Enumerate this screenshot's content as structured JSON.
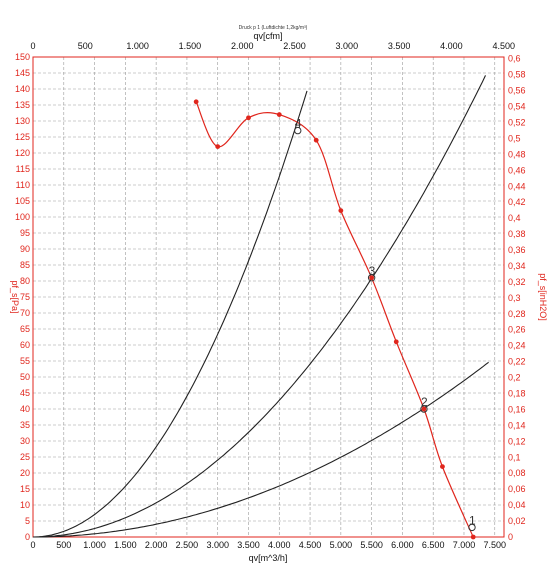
{
  "chart_data": {
    "type": "line",
    "title": "Druck p 1 (Luftdichte 1,2kg/m³)",
    "x_bottom": {
      "label": "qv[m^3/h]",
      "ticks": [
        0,
        500,
        1000,
        1500,
        2000,
        2500,
        3000,
        3500,
        4000,
        4500,
        5000,
        5500,
        6000,
        6500,
        7000,
        7500
      ],
      "tick_labels": [
        "0",
        "500",
        "1.000",
        "1.500",
        "2.000",
        "2.500",
        "3.000",
        "3.500",
        "4.000",
        "4.500",
        "5.000",
        "5.500",
        "6.000",
        "6.500",
        "7.000",
        "7.500"
      ],
      "range": [
        0,
        7650
      ]
    },
    "x_top": {
      "label": "qv[cfm]",
      "ticks": [
        0,
        500,
        1000,
        1500,
        2000,
        2500,
        3000,
        3500,
        4000,
        4500
      ],
      "tick_labels": [
        "0",
        "500",
        "1.000",
        "1.500",
        "2.000",
        "2.500",
        "3.000",
        "3.500",
        "4.000",
        "4.500"
      ]
    },
    "y_left": {
      "label": "pf_s[Pa]",
      "ticks": [
        0,
        5,
        10,
        15,
        20,
        25,
        30,
        35,
        40,
        45,
        50,
        55,
        60,
        65,
        70,
        75,
        80,
        85,
        90,
        95,
        100,
        105,
        110,
        115,
        120,
        125,
        130,
        135,
        140,
        145,
        150
      ],
      "range": [
        0,
        150
      ]
    },
    "y_right": {
      "label": "pf_s[inH2O]",
      "ticks": [
        0,
        0.02,
        0.04,
        0.06,
        0.08,
        0.1,
        0.12,
        0.14,
        0.16,
        0.18,
        0.2,
        0.22,
        0.24,
        0.26,
        0.28,
        0.3,
        0.32,
        0.34,
        0.36,
        0.38,
        0.4,
        0.42,
        0.44,
        0.46,
        0.48,
        0.5,
        0.52,
        0.54,
        0.56,
        0.58,
        0.6
      ],
      "tick_labels": [
        "0",
        "0,02",
        "0,04",
        "0,06",
        "0,08",
        "0,1",
        "0,12",
        "0,14",
        "0,16",
        "0,18",
        "0,2",
        "0,22",
        "0,24",
        "0,26",
        "0,28",
        "0,3",
        "0,32",
        "0,34",
        "0,36",
        "0,38",
        "0,4",
        "0,42",
        "0,44",
        "0,46",
        "0,48",
        "0,5",
        "0,52",
        "0,54",
        "0,56",
        "0,58",
        "0,6"
      ]
    },
    "grid": true,
    "fan_curve": {
      "color": "#e0261d",
      "points": [
        {
          "x": 2650,
          "y": 136
        },
        {
          "x": 3000,
          "y": 122
        },
        {
          "x": 3500,
          "y": 131
        },
        {
          "x": 4000,
          "y": 132
        },
        {
          "x": 4600,
          "y": 124
        },
        {
          "x": 5000,
          "y": 102
        },
        {
          "x": 5500,
          "y": 81
        },
        {
          "x": 5900,
          "y": 61
        },
        {
          "x": 6350,
          "y": 40
        },
        {
          "x": 6650,
          "y": 22
        },
        {
          "x": 7150,
          "y": 0
        }
      ]
    },
    "system_curves": [
      {
        "color": "#222222",
        "k": 7.04e-06,
        "x_max": 4470,
        "point_label": "4"
      },
      {
        "color": "#222222",
        "k": 2.67e-06,
        "x_max": 7350,
        "point_label": "3"
      },
      {
        "color": "#222222",
        "k": 9.97e-07,
        "x_max": 7400,
        "point_label": "2"
      }
    ],
    "operating_points": [
      {
        "label": "4",
        "x": 4300,
        "y": 127
      },
      {
        "label": "3",
        "x": 5500,
        "y": 81
      },
      {
        "label": "2",
        "x": 6350,
        "y": 40
      },
      {
        "label": "1",
        "x": 7130,
        "y": 3
      }
    ],
    "colors": {
      "fan": "#e0261d",
      "system": "#222222",
      "grid": "#9a9a9a",
      "axis": "#e0261d"
    }
  }
}
